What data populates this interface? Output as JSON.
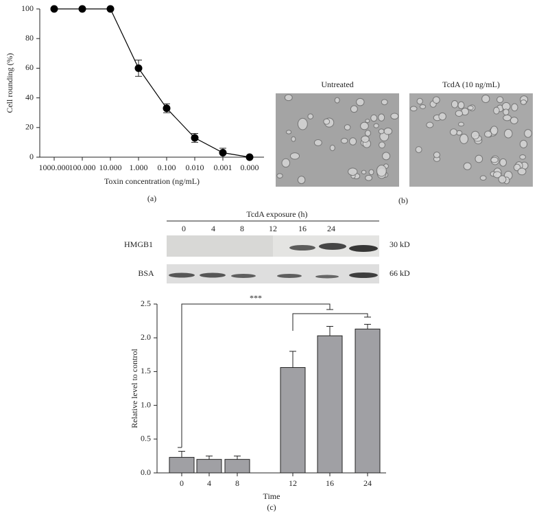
{
  "chart_data": [
    {
      "type": "line",
      "panel_label": "(a)",
      "x_label": "Toxin concentration (ng/mL)",
      "y_label": "Cell rounding (%)",
      "categories": [
        "1000.000",
        "100.000",
        "10.000",
        "1.000",
        "0.100",
        "0.010",
        "0.001",
        "0.000"
      ],
      "values": [
        100,
        100,
        100,
        60,
        33,
        13,
        3,
        0
      ],
      "errors": [
        0,
        0,
        0,
        5.5,
        3,
        3,
        3,
        0
      ],
      "color": "#000000",
      "ylim": [
        0,
        100
      ],
      "yticks": [
        0,
        20,
        40,
        60,
        80,
        100
      ]
    },
    {
      "type": "bar",
      "panel_label": "(c)",
      "x_label": "Time",
      "y_label": "Relative level to control",
      "annotation": "***",
      "categories": [
        "0",
        "4",
        "8",
        "12",
        "16",
        "24"
      ],
      "values": [
        0.23,
        0.2,
        0.2,
        1.56,
        2.03,
        2.13
      ],
      "errors": [
        0.09,
        0.05,
        0.05,
        0.24,
        0.14,
        0.07
      ],
      "color": "#a0a0a4",
      "ylim": [
        0,
        2.5
      ],
      "yticks": [
        {
          "value": 0,
          "label": "0.0"
        },
        0.5,
        {
          "value": 1,
          "label": "1.0"
        },
        1.5,
        {
          "value": 2,
          "label": "2.0"
        },
        2.5
      ]
    }
  ],
  "images": [
    {
      "label": "Untreated"
    },
    {
      "label": "TcdA (10 ng/mL)"
    }
  ],
  "images_panel_label": "(b)",
  "blot": {
    "title": "TcdA exposure (h)",
    "lanes": [
      "0",
      "4",
      "8",
      "12",
      "16",
      "24"
    ],
    "rows": [
      {
        "label": "HMGB1",
        "size": "30 kD"
      },
      {
        "label": "BSA",
        "size": "66 kD"
      }
    ]
  }
}
